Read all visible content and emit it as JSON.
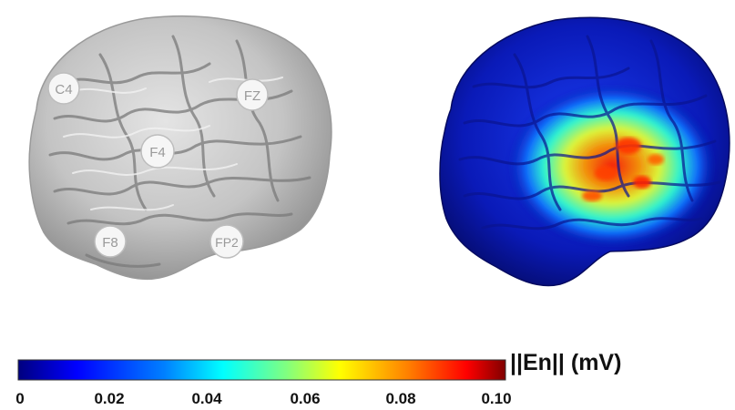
{
  "electrodes": [
    {
      "id": "c4",
      "label": "C4"
    },
    {
      "id": "fz",
      "label": "FZ"
    },
    {
      "id": "f4",
      "label": "F4"
    },
    {
      "id": "f8",
      "label": "F8"
    },
    {
      "id": "fp2",
      "label": "FP2"
    }
  ],
  "colorbar": {
    "label": "||En|| (mV)",
    "ticks": [
      "0",
      "0.02",
      "0.04",
      "0.06",
      "0.08",
      "0.10"
    ],
    "range": [
      0,
      0.1
    ],
    "colors": [
      "#00007f",
      "#0000ff",
      "#0080ff",
      "#00ffff",
      "#80ff80",
      "#ffff00",
      "#ff8000",
      "#ff0000",
      "#800000"
    ]
  },
  "brain_colors": {
    "surface": "#c9c9c9",
    "sulcus": "#6e6e6e",
    "field_low": "#0a1aa8",
    "field_high": "#ff2000"
  }
}
